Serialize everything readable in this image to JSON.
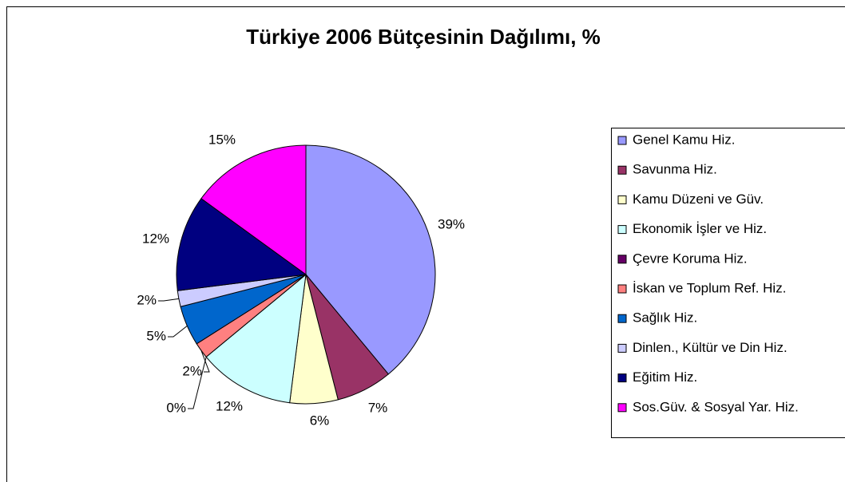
{
  "chart_data": {
    "type": "pie",
    "title": "Türkiye 2006 Bütçesinin Dağılımı, %",
    "categories": [
      "Genel Kamu Hiz.",
      "Savunma Hiz.",
      "Kamu Düzeni ve Güv.",
      "Ekonomik İşler ve Hiz.",
      "Çevre Koruma Hiz.",
      "İskan ve Toplum Ref. Hiz.",
      "Sağlık Hiz.",
      "Dinlen., Kültür ve Din Hiz.",
      "Eğitim Hiz.",
      "Sos.Güv. & Sosyal Yar. Hiz."
    ],
    "values": [
      39,
      7,
      6,
      12,
      0,
      2,
      5,
      2,
      12,
      15
    ],
    "value_labels": [
      "39%",
      "7%",
      "6%",
      "12%",
      "0%",
      "2%",
      "5%",
      "2%",
      "12%",
      "15%"
    ],
    "colors": [
      "#9999ff",
      "#993366",
      "#ffffcc",
      "#ccffff",
      "#660066",
      "#ff8080",
      "#0066cc",
      "#ccccff",
      "#000080",
      "#ff00ff"
    ],
    "legend": "right"
  }
}
